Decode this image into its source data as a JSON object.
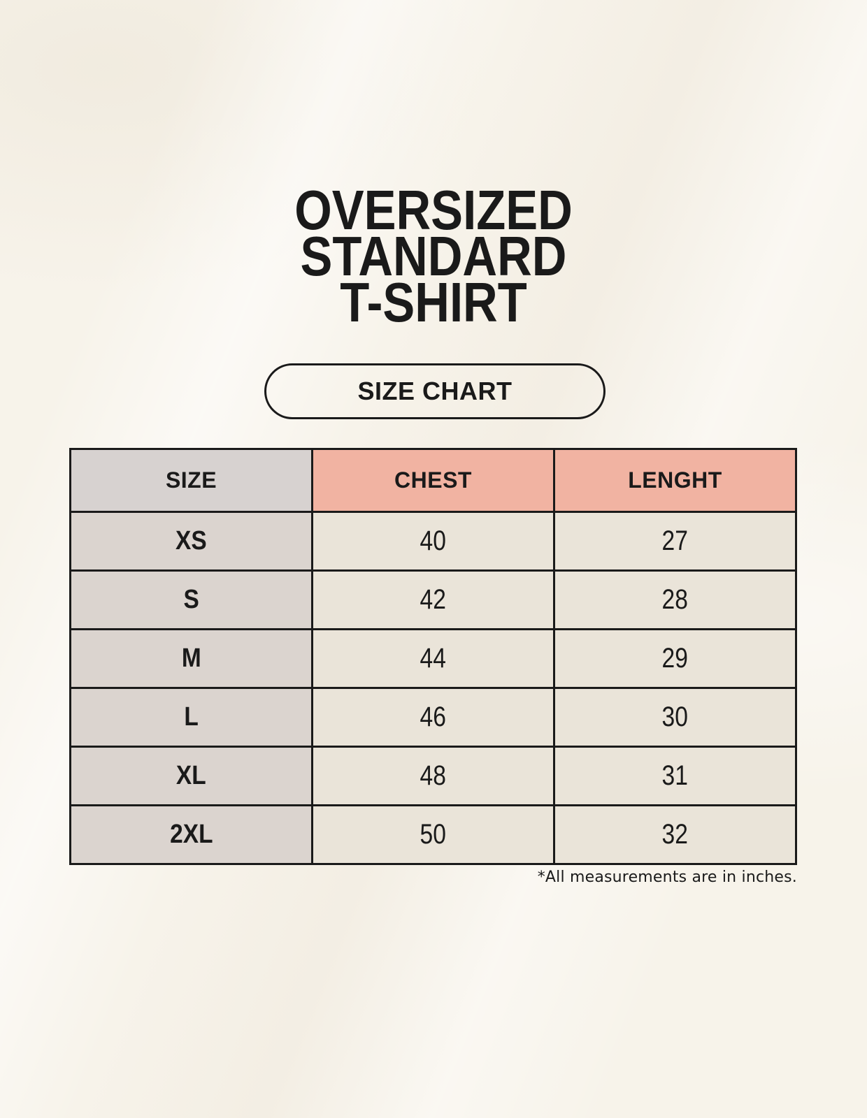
{
  "page": {
    "title_lines": [
      "OVERSIZED",
      "STANDARD",
      "T-SHIRT"
    ],
    "badge_label": "SIZE CHART",
    "footnote": "*All measurements are in inches."
  },
  "colors": {
    "background": "#f7f3ea",
    "border": "#1a1a1a",
    "text": "#1a1a1a",
    "header_size_bg": "#d7d2d0",
    "header_measure_bg": "#f1b3a2",
    "size_col_bg": "#dbd4cf",
    "value_cell_bg": "#eae4d9"
  },
  "chart_data": {
    "type": "table",
    "title": "OVERSIZED STANDARD T-SHIRT",
    "columns": [
      "SIZE",
      "CHEST",
      "LENGHT"
    ],
    "rows": [
      {
        "size": "XS",
        "chest": 40,
        "length": 27
      },
      {
        "size": "S",
        "chest": 42,
        "length": 28
      },
      {
        "size": "M",
        "chest": 44,
        "length": 29
      },
      {
        "size": "L",
        "chest": 46,
        "length": 30
      },
      {
        "size": "XL",
        "chest": 48,
        "length": 31
      },
      {
        "size": "2XL",
        "chest": 50,
        "length": 32
      }
    ],
    "units_note": "*All measurements are in inches."
  }
}
